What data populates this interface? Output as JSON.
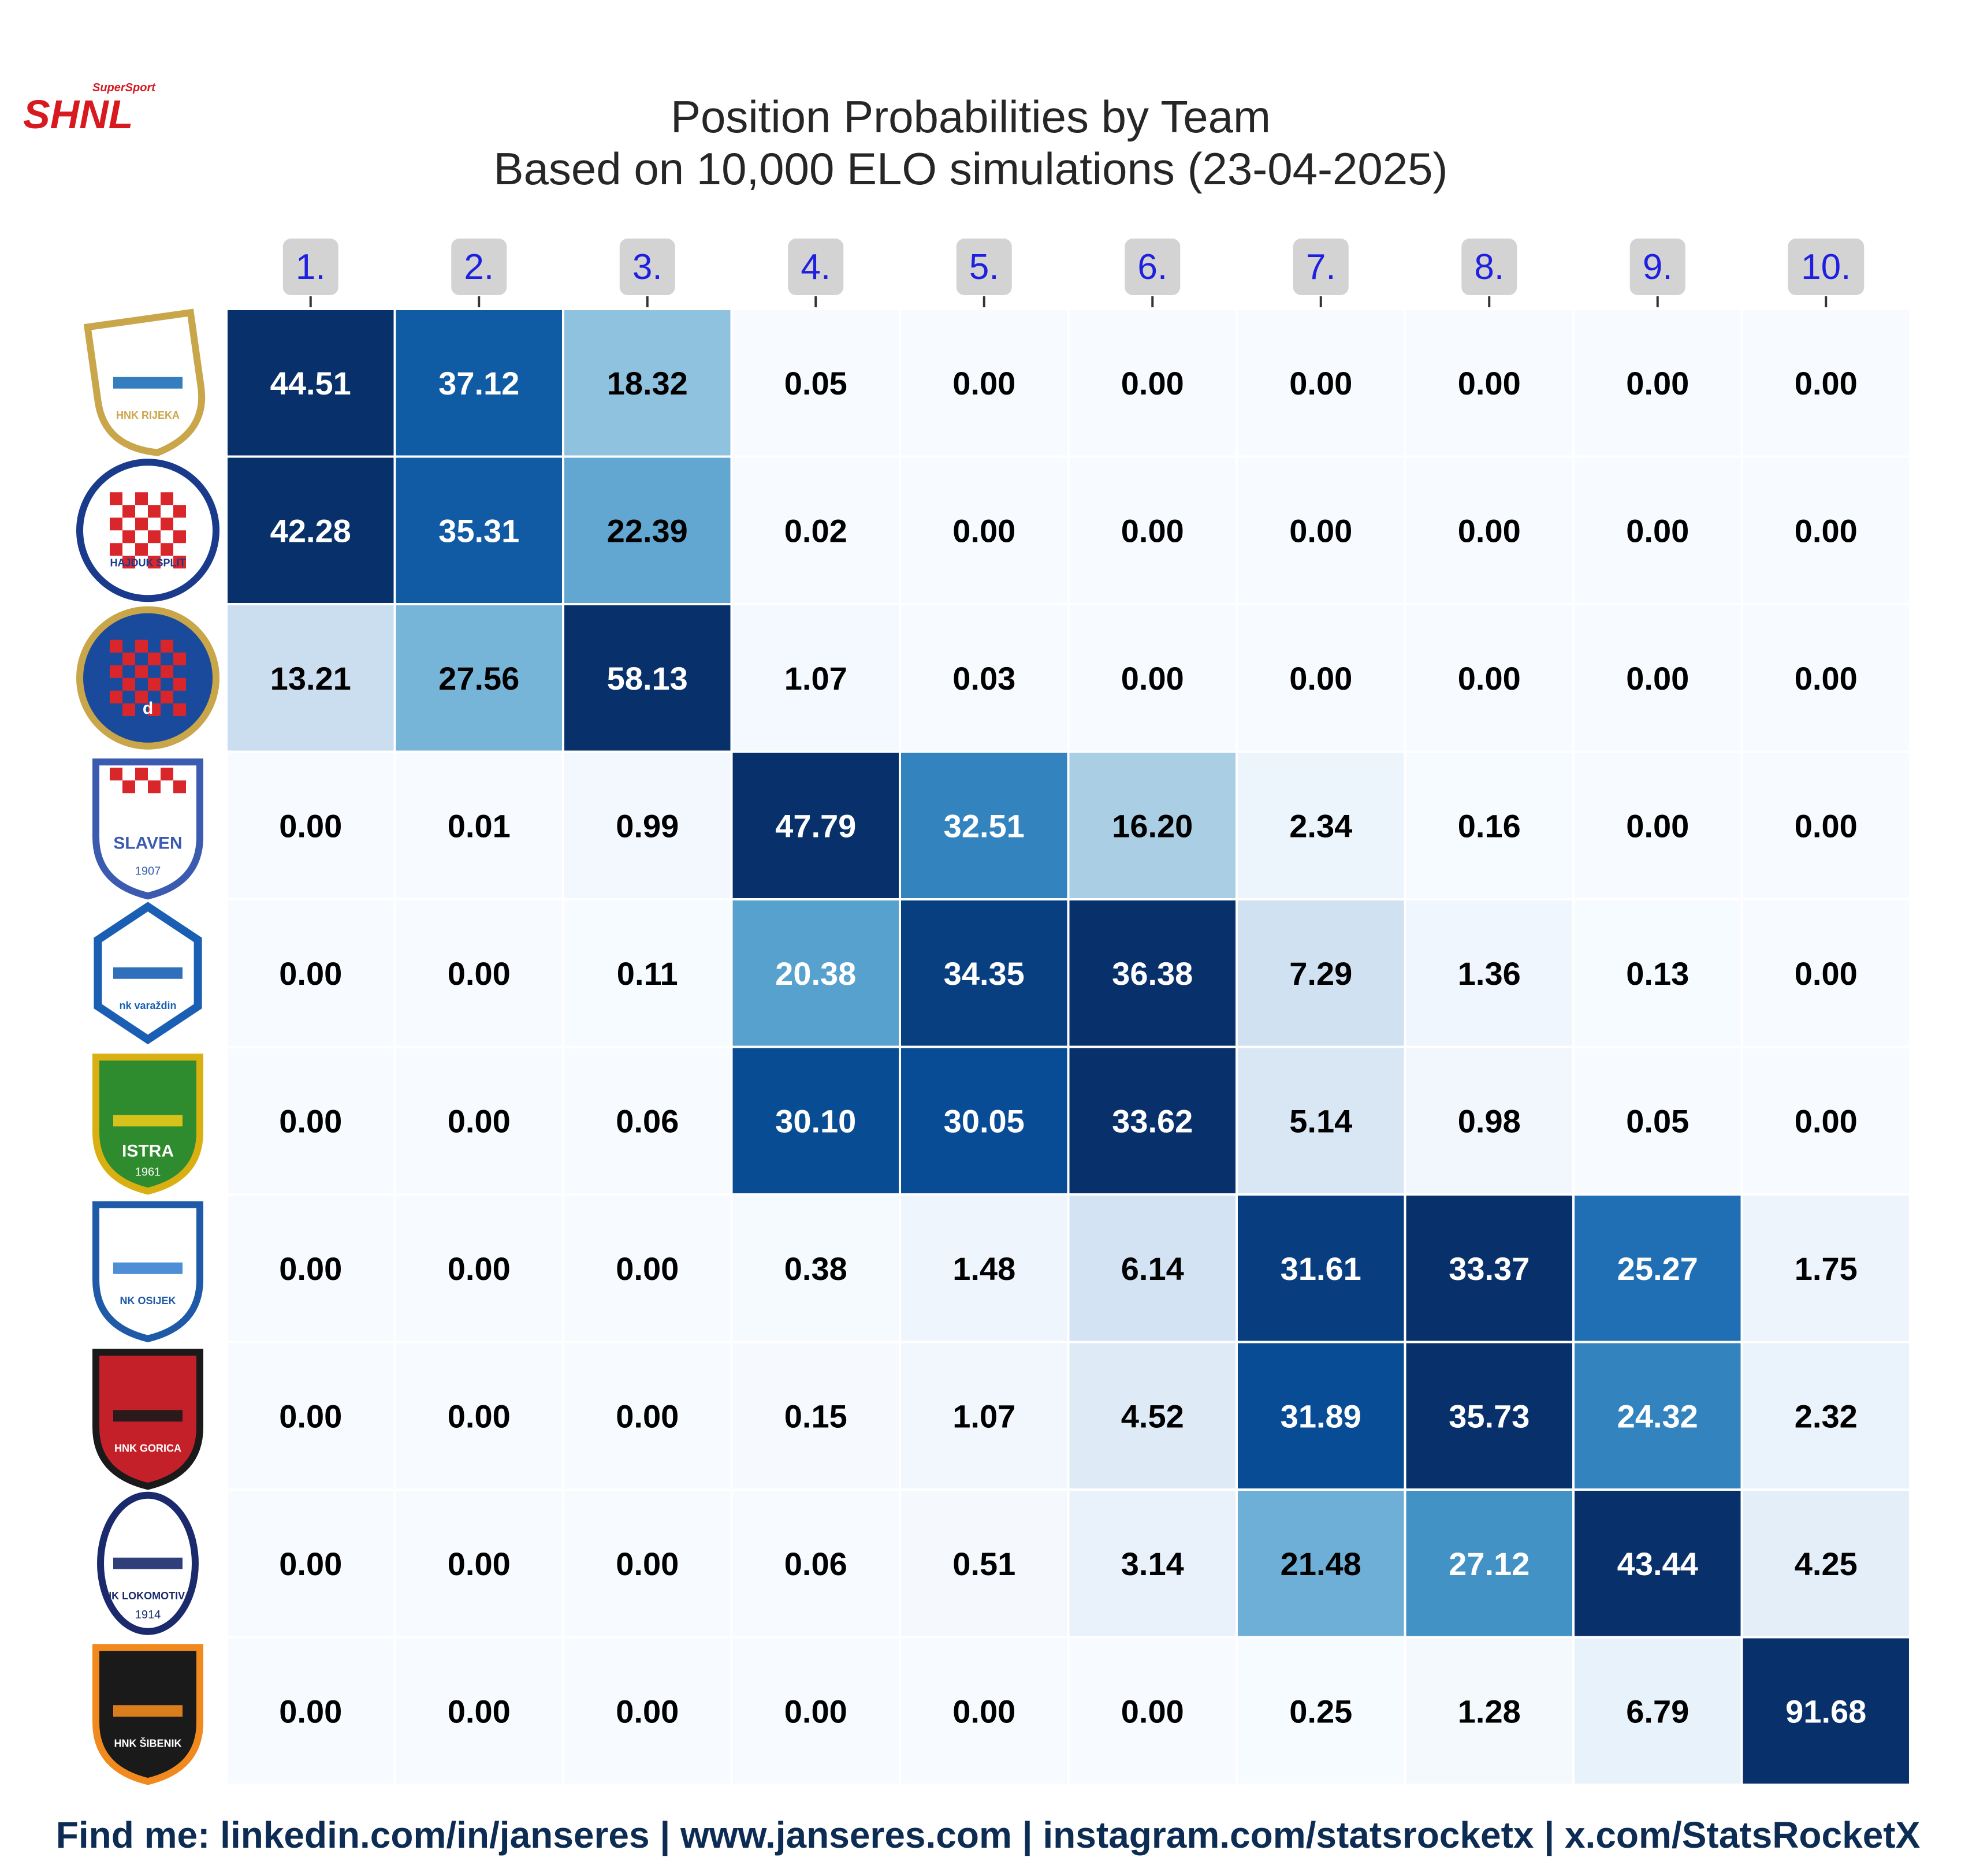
{
  "brand": {
    "logo_text": "SHNL",
    "logo_sub": "SuperSport",
    "accent": "#d71920"
  },
  "title": {
    "line1": "Position Probabilities by Team",
    "line2": "Based on 10,000 ELO simulations (23-04-2025)"
  },
  "footer": "Find me: linkedin.com/in/janseres | www.janseres.com | instagram.com/statsrocketx | x.com/StatsRocketX",
  "colors": {
    "cmap": "Blues",
    "low": "#f7fbff",
    "high": "#08306b",
    "header_bg": "#d3d3d3",
    "header_text": "#1f1fe0"
  },
  "chart_data": {
    "type": "heatmap",
    "columns": [
      "1.",
      "2.",
      "3.",
      "4.",
      "5.",
      "6.",
      "7.",
      "8.",
      "9.",
      "10."
    ],
    "row_logos": [
      {
        "icon": "rijeka-crest-icon",
        "text": "HNK RIJEKA"
      },
      {
        "icon": "hajduk-crest-icon",
        "text": "HAJDUK SPLIT"
      },
      {
        "icon": "dinamo-crest-icon",
        "text": "d"
      },
      {
        "icon": "slaven-crest-icon",
        "text": "SLAVEN",
        "sub": "1907"
      },
      {
        "icon": "varazdin-crest-icon",
        "text": "nk varaždin"
      },
      {
        "icon": "istra-crest-icon",
        "text": "ISTRA",
        "sub": "1961"
      },
      {
        "icon": "osijek-crest-icon",
        "text": "NK OSIJEK"
      },
      {
        "icon": "gorica-crest-icon",
        "text": "HNK GORICA"
      },
      {
        "icon": "lokomotiva-crest-icon",
        "text": "NK LOKOMOTIVA",
        "sub": "1914"
      },
      {
        "icon": "sibenik-crest-icon",
        "text": "HNK ŠIBENIK"
      }
    ],
    "values": [
      [
        44.51,
        37.12,
        18.32,
        0.05,
        0.0,
        0.0,
        0.0,
        0.0,
        0.0,
        0.0
      ],
      [
        42.28,
        35.31,
        22.39,
        0.02,
        0.0,
        0.0,
        0.0,
        0.0,
        0.0,
        0.0
      ],
      [
        13.21,
        27.56,
        58.13,
        1.07,
        0.03,
        0.0,
        0.0,
        0.0,
        0.0,
        0.0
      ],
      [
        0.0,
        0.01,
        0.99,
        47.79,
        32.51,
        16.2,
        2.34,
        0.16,
        0.0,
        0.0
      ],
      [
        0.0,
        0.0,
        0.11,
        20.38,
        34.35,
        36.38,
        7.29,
        1.36,
        0.13,
        0.0
      ],
      [
        0.0,
        0.0,
        0.06,
        30.1,
        30.05,
        33.62,
        5.14,
        0.98,
        0.05,
        0.0
      ],
      [
        0.0,
        0.0,
        0.0,
        0.38,
        1.48,
        6.14,
        31.61,
        33.37,
        25.27,
        1.75
      ],
      [
        0.0,
        0.0,
        0.0,
        0.15,
        1.07,
        4.52,
        31.89,
        35.73,
        24.32,
        2.32
      ],
      [
        0.0,
        0.0,
        0.0,
        0.06,
        0.51,
        3.14,
        21.48,
        27.12,
        43.44,
        4.25
      ],
      [
        0.0,
        0.0,
        0.0,
        0.0,
        0.0,
        0.0,
        0.25,
        1.28,
        6.79,
        91.68
      ]
    ]
  }
}
